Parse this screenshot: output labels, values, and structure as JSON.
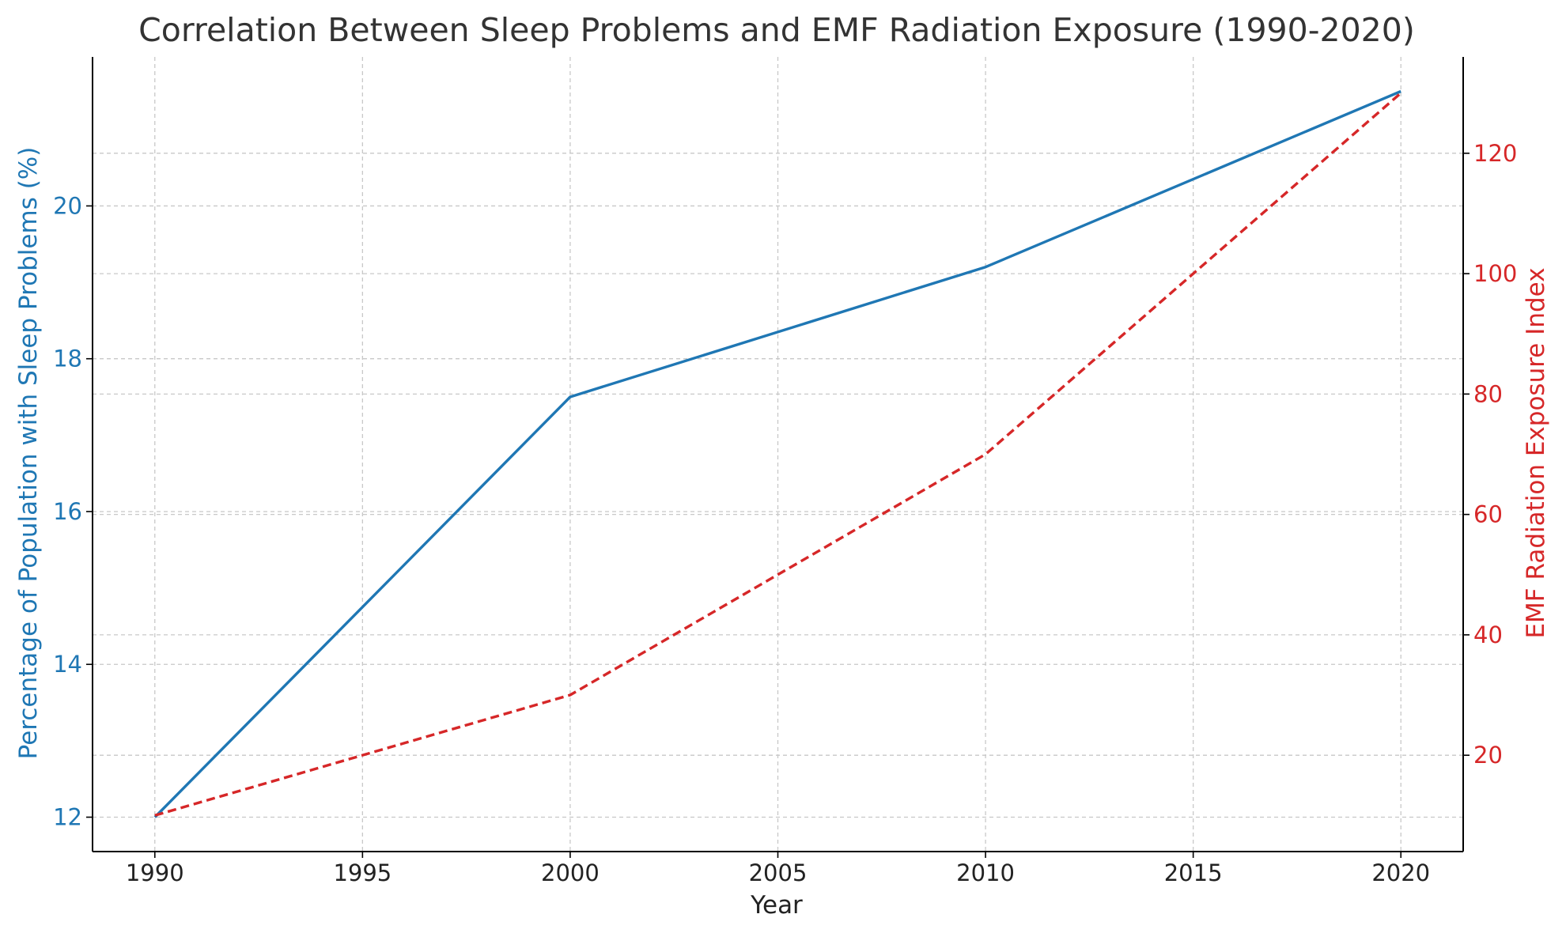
{
  "chart_data": {
    "type": "line",
    "title": "Correlation Between Sleep Problems and EMF Radiation Exposure (1990-2020)",
    "xlabel": "Year",
    "ylabel_left": "Percentage of Population with Sleep Problems (%)",
    "ylabel_right": "EMF Radiation Exposure Index",
    "x": [
      1990,
      2000,
      2010,
      2020
    ],
    "xlim": [
      1988.5,
      2021.5
    ],
    "xticks": [
      1990,
      1995,
      2000,
      2005,
      2010,
      2015,
      2020
    ],
    "ylim_left": [
      11.55,
      21.95
    ],
    "yticks_left": [
      12,
      14,
      16,
      18,
      20
    ],
    "ylim_right": [
      4,
      136
    ],
    "yticks_right": [
      20,
      40,
      60,
      80,
      100,
      120
    ],
    "grid": true,
    "series": [
      {
        "name": "Percentage of Population with Sleep Problems (%)",
        "axis": "left",
        "values": [
          12.0,
          17.5,
          19.2,
          21.5
        ],
        "color": "#1f77b4",
        "style": "solid"
      },
      {
        "name": "EMF Radiation Exposure Index",
        "axis": "right",
        "values": [
          10,
          30,
          70,
          130
        ],
        "color": "#d62728",
        "style": "dashed"
      }
    ],
    "colors": {
      "left_axis": "#1f77b4",
      "right_axis": "#d62728",
      "grid": "#c8c8c8",
      "spine": "#000000"
    }
  }
}
